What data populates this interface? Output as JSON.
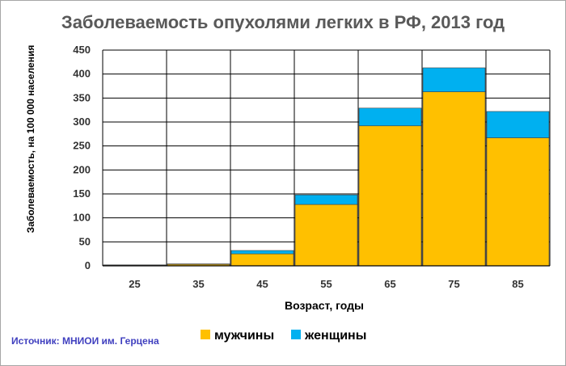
{
  "chart_data": {
    "type": "bar",
    "stacked": true,
    "title": "Заболеваемость опухолями легких в РФ, 2013 год",
    "xlabel": "Возраст, годы",
    "ylabel": "Заболеваемость, на 100 000 населения",
    "categories": [
      "25",
      "35",
      "45",
      "55",
      "65",
      "75",
      "85"
    ],
    "ylim": [
      0,
      450
    ],
    "yticks": [
      0,
      50,
      100,
      150,
      200,
      250,
      300,
      350,
      400,
      450
    ],
    "grid": true,
    "legend_position": "bottom",
    "series": [
      {
        "name": "мужчины",
        "color": "#ffc000",
        "values": [
          1,
          3,
          25,
          128,
          292,
          363,
          267
        ]
      },
      {
        "name": "женщины",
        "color": "#00b0f0",
        "values": [
          1,
          1,
          7,
          20,
          37,
          50,
          55
        ]
      }
    ],
    "source": "Источник: МНИОИ им. Герцена"
  }
}
